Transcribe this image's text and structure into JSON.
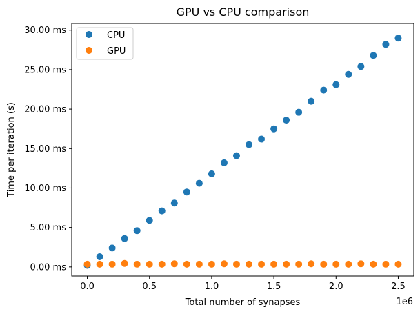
{
  "chart_data": {
    "type": "scatter",
    "title": "GPU vs CPU comparison",
    "xlabel": "Total number of synapses",
    "ylabel": "Time per iteration (s)",
    "x_offset_label": "1e6",
    "xlim": [
      -0.125,
      2.625
    ],
    "ylim": [
      -1.15,
      30.85
    ],
    "xticks": [
      0.0,
      0.5,
      1.0,
      1.5,
      2.0,
      2.5
    ],
    "xtick_labels": [
      "0.0",
      "0.5",
      "1.0",
      "1.5",
      "2.0",
      "2.5"
    ],
    "yticks": [
      0,
      5,
      10,
      15,
      20,
      25,
      30
    ],
    "ytick_labels": [
      "0.00 ms",
      "5.00 ms",
      "10.00 ms",
      "15.00 ms",
      "20.00 ms",
      "25.00 ms",
      "30.00 ms"
    ],
    "grid": false,
    "legend_position": "top-left",
    "x": [
      0.0,
      0.1,
      0.2,
      0.3,
      0.4,
      0.5,
      0.6,
      0.7,
      0.8,
      0.9,
      1.0,
      1.1,
      1.2,
      1.3,
      1.4,
      1.5,
      1.6,
      1.7,
      1.8,
      1.9,
      2.0,
      2.1,
      2.2,
      2.3,
      2.4,
      2.5
    ],
    "series": [
      {
        "name": "CPU",
        "color": "#1f77b4",
        "values": [
          0.2,
          1.3,
          2.4,
          3.6,
          4.6,
          5.9,
          7.1,
          8.1,
          9.5,
          10.6,
          11.8,
          13.2,
          14.1,
          15.5,
          16.2,
          17.5,
          18.6,
          19.6,
          21.0,
          22.4,
          23.1,
          24.4,
          25.4,
          26.8,
          28.2,
          29.0
        ]
      },
      {
        "name": "GPU",
        "color": "#ff7f0e",
        "values": [
          0.35,
          0.35,
          0.35,
          0.45,
          0.35,
          0.35,
          0.35,
          0.4,
          0.35,
          0.35,
          0.35,
          0.4,
          0.35,
          0.35,
          0.35,
          0.35,
          0.35,
          0.35,
          0.4,
          0.35,
          0.35,
          0.35,
          0.4,
          0.35,
          0.35,
          0.35
        ]
      }
    ]
  }
}
